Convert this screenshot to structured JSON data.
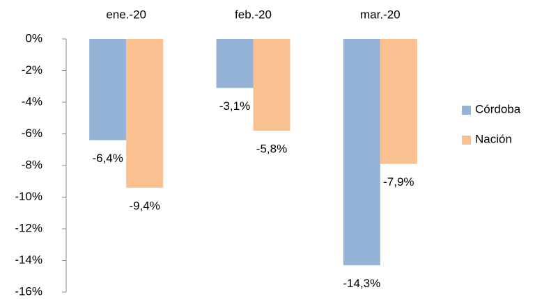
{
  "chart_data": {
    "type": "bar",
    "categories": [
      "ene.-20",
      "feb.-20",
      "mar.-20"
    ],
    "series": [
      {
        "name": "Córdoba",
        "color": "#95b3d7",
        "values": [
          -6.4,
          -3.1,
          -14.3
        ],
        "value_labels": [
          "-6,4%",
          "-3,1%",
          "-14,3%"
        ]
      },
      {
        "name": "Nación",
        "color": "#fac090",
        "values": [
          -9.4,
          -5.8,
          -7.9
        ],
        "value_labels": [
          "-9,4%",
          "-5,8%",
          "-7,9%"
        ]
      }
    ],
    "ylim": [
      -16,
      0
    ],
    "yticks": [
      {
        "value": 0,
        "label": "0%"
      },
      {
        "value": -2,
        "label": "-2%"
      },
      {
        "value": -4,
        "label": "-4%"
      },
      {
        "value": -6,
        "label": "-6%"
      },
      {
        "value": -8,
        "label": "-8%"
      },
      {
        "value": -10,
        "label": "-10%"
      },
      {
        "value": -12,
        "label": "-12%"
      },
      {
        "value": -14,
        "label": "-14%"
      },
      {
        "value": -16,
        "label": "-16%"
      }
    ],
    "legend": "right"
  }
}
